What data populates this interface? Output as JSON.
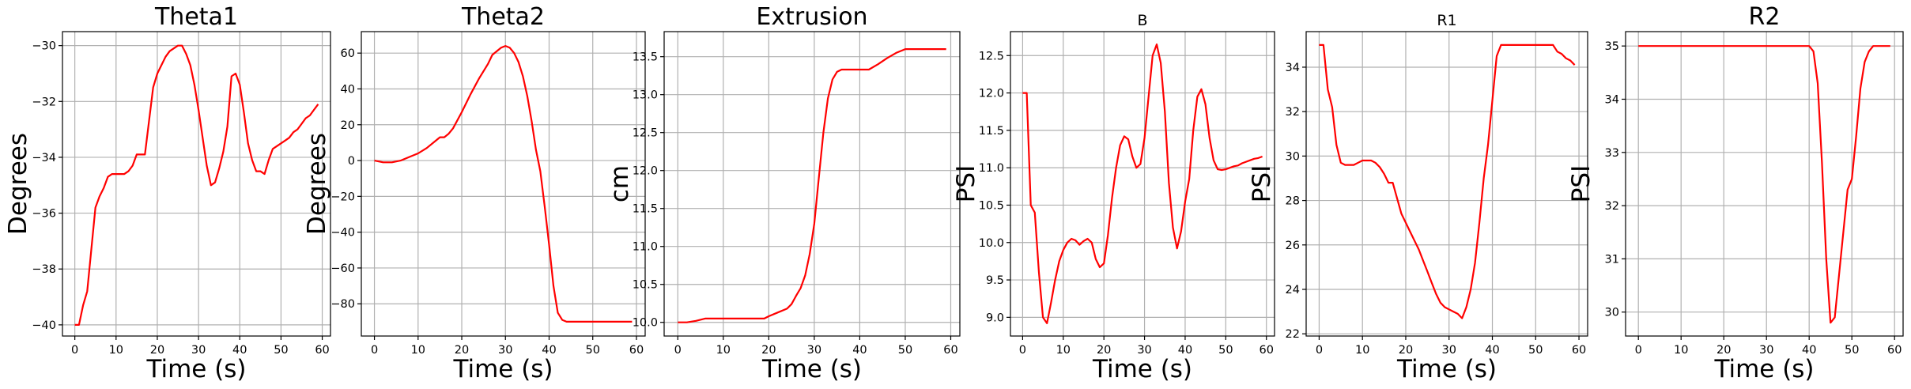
{
  "chart_data": [
    {
      "type": "line",
      "title": "Theta1",
      "title_size": "large",
      "xlabel": "Time (s)",
      "ylabel": "Degrees",
      "xlim": [
        -3,
        62
      ],
      "ylim": [
        -40.4,
        -29.5
      ],
      "grid": true,
      "color": "#ff0000",
      "xticks": [
        0,
        10,
        20,
        30,
        40,
        50,
        60
      ],
      "xtick_labels": [
        "0",
        "10",
        "20",
        "30",
        "40",
        "50",
        "60"
      ],
      "yticks": [
        -40,
        -38,
        -36,
        -34,
        -32,
        -30
      ],
      "ytick_labels": [
        "−40",
        "−38",
        "−36",
        "−34",
        "−32",
        "−30"
      ],
      "series": [
        {
          "x": [
            0,
            1,
            2,
            3,
            4,
            5,
            6,
            7,
            8,
            9,
            10,
            11,
            12,
            13,
            14,
            15,
            16,
            17,
            18,
            19,
            20,
            21,
            22,
            23,
            24,
            25,
            26,
            27,
            28,
            29,
            30,
            31,
            32,
            33,
            34,
            35,
            36,
            37,
            38,
            39,
            40,
            41,
            42,
            43,
            44,
            45,
            46,
            47,
            48,
            49,
            50,
            51,
            52,
            53,
            54,
            55,
            56,
            57,
            58,
            59
          ],
          "y": [
            -40,
            -40,
            -39.3,
            -38.8,
            -37.3,
            -35.8,
            -35.4,
            -35.1,
            -34.7,
            -34.6,
            -34.6,
            -34.6,
            -34.6,
            -34.5,
            -34.3,
            -33.9,
            -33.9,
            -33.9,
            -32.7,
            -31.5,
            -31,
            -30.7,
            -30.4,
            -30.2,
            -30.1,
            -30,
            -30,
            -30.3,
            -30.7,
            -31.4,
            -32.3,
            -33.3,
            -34.3,
            -35,
            -34.9,
            -34.4,
            -33.8,
            -32.9,
            -31.1,
            -31,
            -31.4,
            -32.4,
            -33.5,
            -34.1,
            -34.5,
            -34.5,
            -34.6,
            -34.1,
            -33.7,
            -33.6,
            -33.5,
            -33.4,
            -33.3,
            -33.1,
            -33,
            -32.8,
            -32.6,
            -32.5,
            -32.3,
            -32.1
          ]
        }
      ]
    },
    {
      "type": "line",
      "title": "Theta2",
      "title_size": "large",
      "xlabel": "Time (s)",
      "ylabel": "Degrees",
      "xlim": [
        -3,
        62
      ],
      "ylim": [
        -98,
        72
      ],
      "grid": true,
      "color": "#ff0000",
      "xticks": [
        0,
        10,
        20,
        30,
        40,
        50,
        60
      ],
      "xtick_labels": [
        "0",
        "10",
        "20",
        "30",
        "40",
        "50",
        "60"
      ],
      "yticks": [
        -80,
        -60,
        -40,
        -20,
        0,
        20,
        40,
        60
      ],
      "ytick_labels": [
        "−80",
        "−60",
        "−40",
        "−20",
        "0",
        "20",
        "40",
        "60"
      ],
      "series": [
        {
          "x": [
            0,
            2,
            4,
            6,
            8,
            10,
            12,
            14,
            15,
            16,
            17,
            18,
            20,
            22,
            24,
            26,
            27,
            28,
            29,
            30,
            31,
            32,
            33,
            34,
            35,
            36,
            37,
            38,
            39,
            40,
            41,
            42,
            43,
            44,
            46,
            50,
            55,
            59
          ],
          "y": [
            0,
            -1,
            -1,
            0,
            2,
            4,
            7,
            11,
            13,
            13,
            15,
            18,
            27,
            37,
            46,
            54,
            59,
            61,
            63,
            64,
            63,
            60,
            55,
            47,
            36,
            22,
            6,
            -6,
            -26,
            -47,
            -70,
            -85,
            -89,
            -90,
            -90,
            -90,
            -90,
            -90
          ]
        }
      ]
    },
    {
      "type": "line",
      "title": "Extrusion",
      "title_size": "large",
      "xlabel": "Time (s)",
      "ylabel": "cm",
      "xlim": [
        -3,
        62
      ],
      "ylim": [
        9.82,
        13.83
      ],
      "grid": true,
      "color": "#ff0000",
      "xticks": [
        0,
        10,
        20,
        30,
        40,
        50,
        60
      ],
      "xtick_labels": [
        "0",
        "10",
        "20",
        "30",
        "40",
        "50",
        "60"
      ],
      "yticks": [
        10.0,
        10.5,
        11.0,
        11.5,
        12.0,
        12.5,
        13.0,
        13.5
      ],
      "ytick_labels": [
        "10.0",
        "10.5",
        "11.0",
        "11.5",
        "12.0",
        "12.5",
        "13.0",
        "13.5"
      ],
      "series": [
        {
          "x": [
            0,
            2,
            4,
            6,
            10,
            15,
            19,
            20,
            22,
            24,
            25,
            26,
            27,
            28,
            29,
            30,
            31,
            32,
            33,
            34,
            35,
            36,
            37,
            38,
            40,
            42,
            44,
            46,
            48,
            50,
            52,
            54,
            56,
            59
          ],
          "y": [
            10,
            10,
            10.02,
            10.05,
            10.05,
            10.05,
            10.05,
            10.08,
            10.13,
            10.18,
            10.24,
            10.35,
            10.45,
            10.62,
            10.9,
            11.3,
            11.9,
            12.5,
            12.95,
            13.2,
            13.3,
            13.33,
            13.33,
            13.33,
            13.33,
            13.33,
            13.4,
            13.48,
            13.55,
            13.6,
            13.6,
            13.6,
            13.6,
            13.6
          ]
        }
      ]
    },
    {
      "type": "line",
      "title": "B",
      "title_size": "small",
      "xlabel": "Time (s)",
      "ylabel": "PSI",
      "xlim": [
        -3,
        62
      ],
      "ylim": [
        8.75,
        12.82
      ],
      "grid": true,
      "color": "#ff0000",
      "xticks": [
        0,
        10,
        20,
        30,
        40,
        50,
        60
      ],
      "xtick_labels": [
        "0",
        "10",
        "20",
        "30",
        "40",
        "50",
        "60"
      ],
      "yticks": [
        9.0,
        9.5,
        10.0,
        10.5,
        11.0,
        11.5,
        12.0,
        12.5
      ],
      "ytick_labels": [
        "9.0",
        "9.5",
        "10.0",
        "10.5",
        "11.0",
        "11.5",
        "12.0",
        "12.5"
      ],
      "series": [
        {
          "x": [
            0,
            1,
            2,
            3,
            4,
            5,
            6,
            7,
            8,
            9,
            10,
            11,
            12,
            13,
            14,
            15,
            16,
            17,
            18,
            19,
            20,
            21,
            22,
            23,
            24,
            25,
            26,
            27,
            28,
            29,
            30,
            31,
            32,
            33,
            34,
            35,
            36,
            37,
            38,
            39,
            40,
            41,
            42,
            43,
            44,
            45,
            46,
            47,
            48,
            49,
            50,
            51,
            52,
            53,
            54,
            55,
            56,
            57,
            58,
            59
          ],
          "y": [
            12,
            12,
            10.5,
            10.4,
            9.6,
            9,
            8.92,
            9.2,
            9.5,
            9.75,
            9.9,
            10,
            10.05,
            10.03,
            9.97,
            10.02,
            10.05,
            10,
            9.78,
            9.67,
            9.72,
            10.1,
            10.6,
            11,
            11.3,
            11.42,
            11.38,
            11.15,
            11,
            11.05,
            11.4,
            11.95,
            12.5,
            12.65,
            12.4,
            11.75,
            10.8,
            10.2,
            9.92,
            10.15,
            10.55,
            10.85,
            11.5,
            11.95,
            12.05,
            11.85,
            11.4,
            11.1,
            10.98,
            10.97,
            10.98,
            11,
            11.02,
            11.03,
            11.06,
            11.08,
            11.1,
            11.12,
            11.13,
            11.15
          ]
        }
      ]
    },
    {
      "type": "line",
      "title": "R1",
      "title_size": "small",
      "xlabel": "Time (s)",
      "ylabel": "PSI",
      "xlim": [
        -3,
        62
      ],
      "ylim": [
        21.9,
        35.6
      ],
      "grid": true,
      "color": "#ff0000",
      "xticks": [
        0,
        10,
        20,
        30,
        40,
        50,
        60
      ],
      "xtick_labels": [
        "0",
        "10",
        "20",
        "30",
        "40",
        "50",
        "60"
      ],
      "yticks": [
        22,
        24,
        26,
        28,
        30,
        32,
        34
      ],
      "ytick_labels": [
        "22",
        "24",
        "26",
        "28",
        "30",
        "32",
        "34"
      ],
      "series": [
        {
          "x": [
            0,
            1,
            2,
            3,
            4,
            5,
            6,
            7,
            8,
            9,
            10,
            11,
            12,
            13,
            14,
            15,
            16,
            17,
            18,
            19,
            20,
            21,
            22,
            23,
            24,
            25,
            26,
            27,
            28,
            29,
            30,
            31,
            32,
            33,
            34,
            35,
            36,
            37,
            38,
            39,
            40,
            41,
            42,
            43,
            44,
            45,
            46,
            47,
            48,
            49,
            50,
            51,
            52,
            53,
            54,
            55,
            56,
            57,
            58,
            59
          ],
          "y": [
            35,
            35,
            33,
            32.2,
            30.5,
            29.7,
            29.6,
            29.6,
            29.6,
            29.7,
            29.8,
            29.8,
            29.8,
            29.7,
            29.5,
            29.2,
            28.8,
            28.8,
            28.1,
            27.4,
            27,
            26.6,
            26.2,
            25.8,
            25.3,
            24.8,
            24.3,
            23.8,
            23.4,
            23.2,
            23.1,
            23,
            22.9,
            22.7,
            23.2,
            24,
            25.2,
            27,
            29,
            30.5,
            32.5,
            34.5,
            35,
            35,
            35,
            35,
            35,
            35,
            35,
            35,
            35,
            35,
            35,
            35,
            35,
            34.7,
            34.6,
            34.4,
            34.3,
            34.1
          ]
        }
      ]
    },
    {
      "type": "line",
      "title": "R2",
      "title_size": "large",
      "xlabel": "Time (s)",
      "ylabel": "PSI",
      "xlim": [
        -3,
        62
      ],
      "ylim": [
        29.55,
        35.27
      ],
      "grid": true,
      "color": "#ff0000",
      "xticks": [
        0,
        10,
        20,
        30,
        40,
        50,
        60
      ],
      "xtick_labels": [
        "0",
        "10",
        "20",
        "30",
        "40",
        "50",
        "60"
      ],
      "yticks": [
        30,
        31,
        32,
        33,
        34,
        35
      ],
      "ytick_labels": [
        "30",
        "31",
        "32",
        "33",
        "34",
        "35"
      ],
      "series": [
        {
          "x": [
            0,
            10,
            20,
            30,
            38,
            39,
            40,
            41,
            42,
            43,
            44,
            45,
            46,
            47,
            48,
            49,
            50,
            51,
            52,
            53,
            54,
            55,
            56,
            57,
            58,
            59
          ],
          "y": [
            35,
            35,
            35,
            35,
            35,
            35,
            35,
            34.9,
            34.3,
            32.8,
            31,
            29.8,
            29.9,
            30.7,
            31.5,
            32.3,
            32.5,
            33.3,
            34.2,
            34.7,
            34.9,
            35,
            35,
            35,
            35,
            35
          ]
        }
      ]
    }
  ]
}
